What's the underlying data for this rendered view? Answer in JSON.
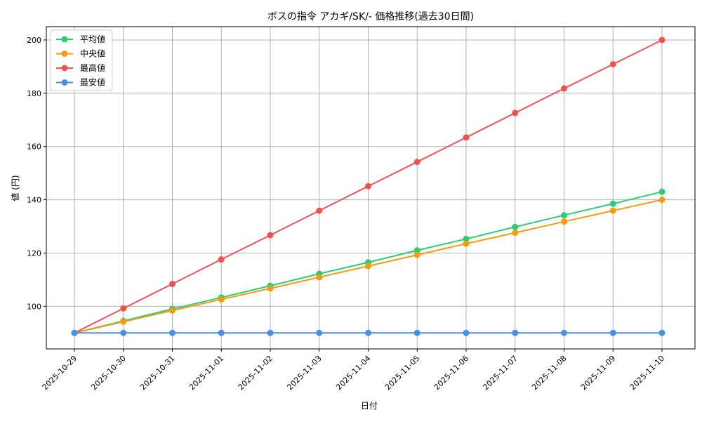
{
  "chart_data": {
    "type": "line",
    "title": "ボスの指令 アカギ/SK/- 価格推移(過去30日間)",
    "xlabel": "日付",
    "ylabel": "値 (円)",
    "categories": [
      "2025-10-29",
      "2025-10-30",
      "2025-10-31",
      "2025-11-01",
      "2025-11-02",
      "2025-11-03",
      "2025-11-04",
      "2025-11-05",
      "2025-11-06",
      "2025-11-07",
      "2025-11-08",
      "2025-11-09",
      "2025-11-10"
    ],
    "ylim": [
      84,
      205
    ],
    "yticks": [
      100,
      120,
      140,
      160,
      180,
      200
    ],
    "grid": true,
    "legend_position": "top-left",
    "series": [
      {
        "name": "平均値",
        "color": "#2ecc71",
        "values": [
          90,
          94.5,
          99,
          103.3,
          107.7,
          112.2,
          116.5,
          121,
          125.3,
          129.8,
          134.2,
          138.5,
          143
        ]
      },
      {
        "name": "中央値",
        "color": "#f39c12",
        "values": [
          90,
          94.2,
          98.4,
          102.6,
          106.7,
          110.9,
          115.1,
          119.3,
          123.5,
          127.6,
          131.8,
          135.9,
          140
        ]
      },
      {
        "name": "最高値",
        "color": "#ef5350",
        "values": [
          90,
          99.2,
          108.4,
          117.6,
          126.7,
          135.9,
          145.1,
          154.2,
          163.4,
          172.6,
          181.8,
          190.9,
          200
        ]
      },
      {
        "name": "最安値",
        "color": "#4a90e2",
        "values": [
          90,
          90,
          90,
          90,
          90,
          90,
          90,
          90,
          90,
          90,
          90,
          90,
          90
        ]
      }
    ]
  }
}
